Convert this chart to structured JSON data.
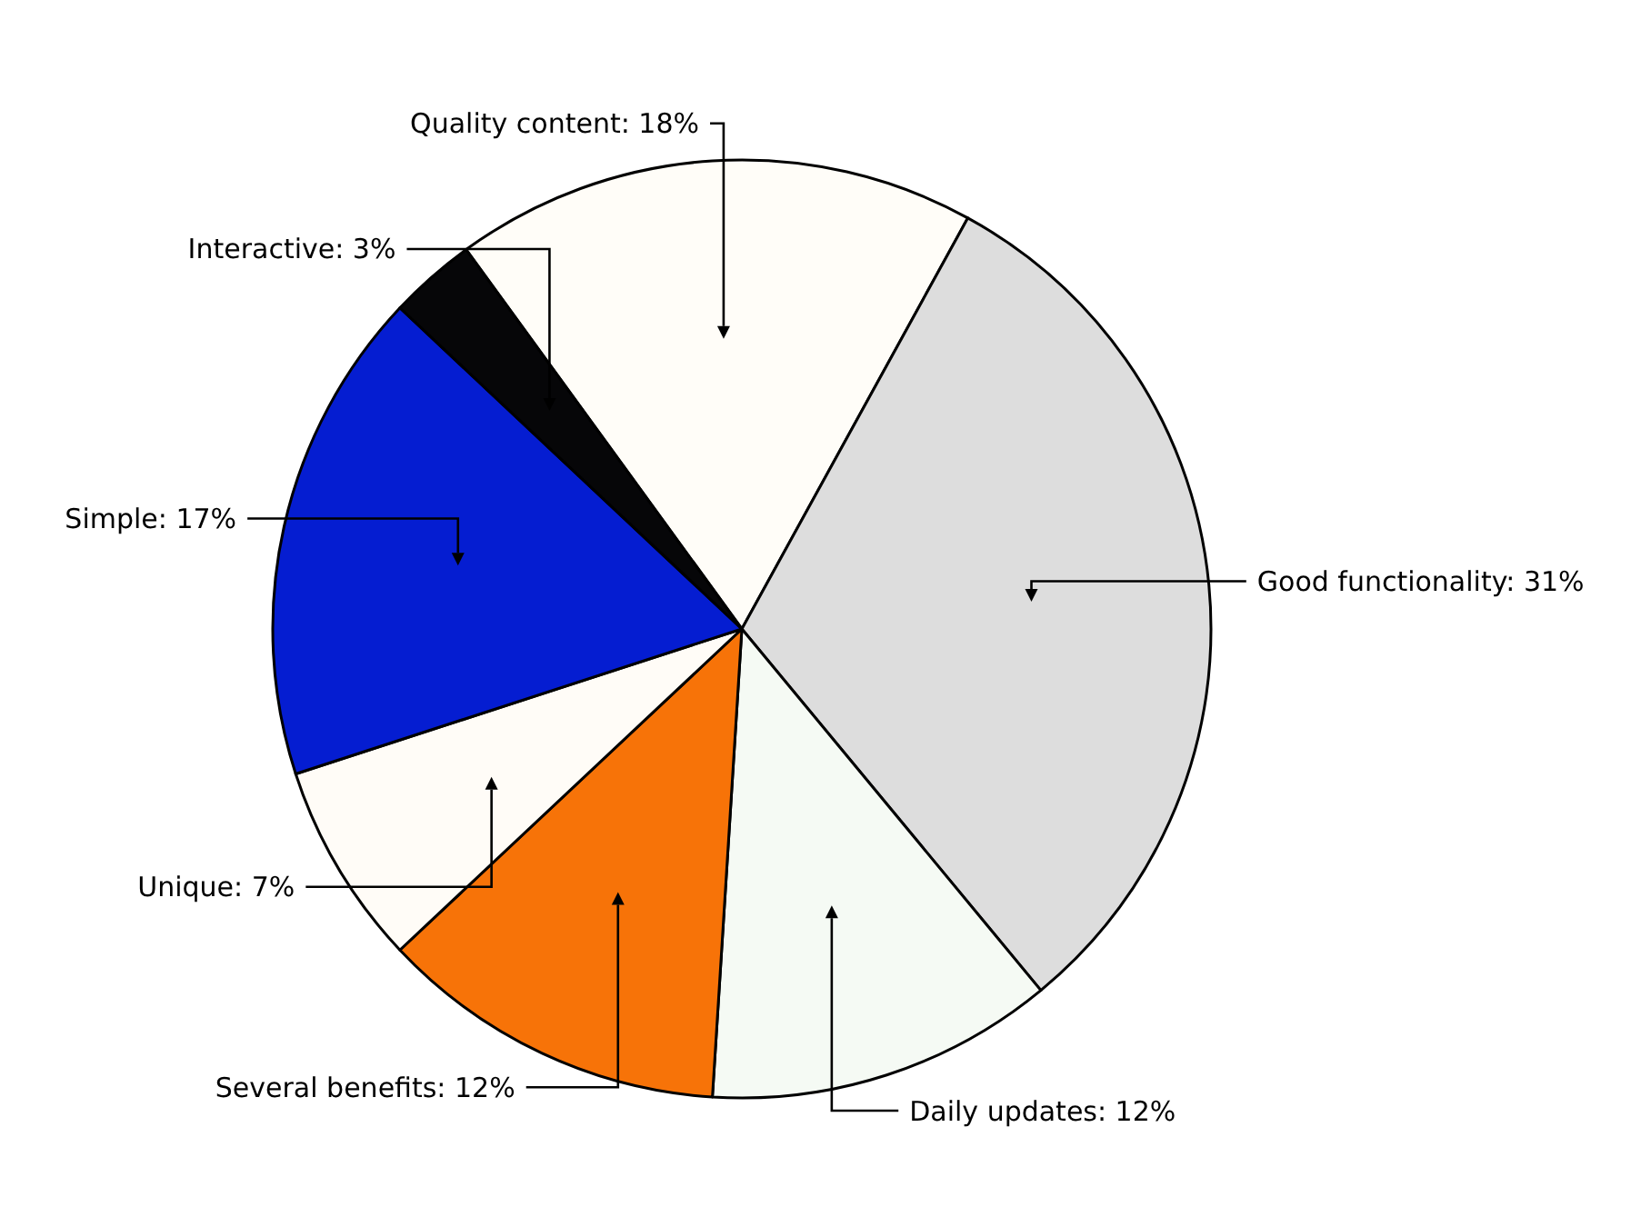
{
  "chart_data": {
    "type": "pie",
    "categories": [
      "Quality content",
      "Good functionality",
      "Daily updates",
      "Several benefits",
      "Unique",
      "Simple",
      "Interactive"
    ],
    "values": [
      18,
      31,
      12,
      12,
      7,
      17,
      3
    ],
    "value_labels": [
      "18%",
      "31%",
      "12%",
      "12%",
      "7%",
      "17%",
      "3%"
    ],
    "colors": [
      "#fffdf8",
      "#dddddd",
      "#f5faf4",
      "#f77308",
      "#fffcf7",
      "#051dd1",
      "#060608"
    ]
  }
}
